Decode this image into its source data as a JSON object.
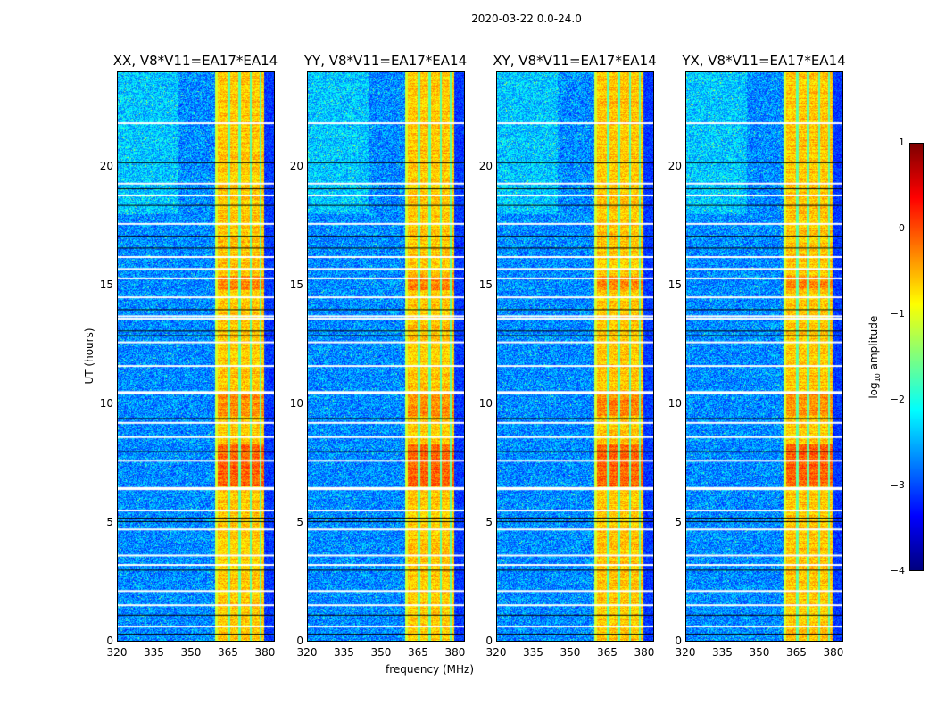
{
  "chart_data": {
    "type": "heatmap",
    "suptitle": "2020-03-22 0.0-24.0",
    "panels": [
      {
        "title": "XX, V8*V11=EA17*EA14"
      },
      {
        "title": "YY, V8*V11=EA17*EA14"
      },
      {
        "title": "XY, V8*V11=EA17*EA14"
      },
      {
        "title": "YX, V8*V11=EA17*EA14"
      }
    ],
    "xlabel": "frequency (MHz)",
    "ylabel": "UT (hours)",
    "xlim": [
      320,
      384
    ],
    "ylim": [
      0,
      24
    ],
    "xticks": [
      "320",
      "335",
      "350",
      "365",
      "380"
    ],
    "xtick_values": [
      320,
      335,
      350,
      365,
      380
    ],
    "yticks": [
      "0",
      "5",
      "10",
      "15",
      "20"
    ],
    "ytick_values": [
      0,
      5,
      10,
      15,
      20
    ],
    "colorbar": {
      "label": "log10 amplitude",
      "label_main": "log",
      "label_sub": "10",
      "label_rest": " amplitude",
      "range": [
        -4,
        1
      ],
      "ticks": [
        "1",
        "0",
        "−1",
        "−2",
        "−3",
        "−4"
      ],
      "tick_values": [
        1,
        0,
        -1,
        -2,
        -3,
        -4
      ],
      "colormap": "jet"
    },
    "rfi_band_mhz": [
      360,
      380
    ],
    "rfi_level": -0.6,
    "background_level": -2.7,
    "flagged_hours": [
      21.85,
      19.3,
      18.8,
      17.6,
      16.2,
      15.7,
      15.3,
      14.5,
      13.7,
      13.6,
      12.6,
      11.6,
      10.5,
      10.45,
      9.2,
      8.6,
      7.6,
      6.45,
      6.4,
      5.5,
      4.7,
      3.6,
      3.2,
      2.1,
      1.5,
      0.6
    ],
    "dark_hours": [
      20.2,
      19.1,
      18.4,
      17.1,
      16.6,
      14.0,
      13.1,
      12.9,
      9.4,
      8.0,
      5.2,
      5.05,
      3.0,
      1.1,
      0.3
    ]
  }
}
